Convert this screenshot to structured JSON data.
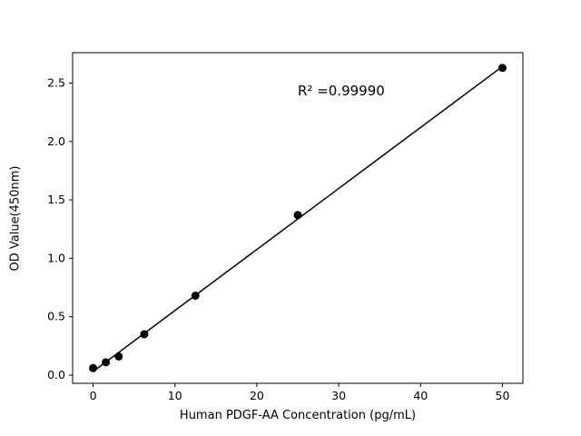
{
  "chart_data": {
    "type": "scatter",
    "title": "",
    "xlabel": "Human PDGF-AA Concentration (pg/mL)",
    "ylabel": "OD Value(450nm)",
    "annotation": "R² =0.99990",
    "points": {
      "x": [
        0,
        1.56,
        3.125,
        6.25,
        12.5,
        25,
        50
      ],
      "y": [
        0.06,
        0.11,
        0.16,
        0.35,
        0.68,
        1.37,
        2.63
      ]
    },
    "fit_line": {
      "x": [
        0,
        50
      ],
      "y": [
        0.031,
        2.642
      ]
    },
    "xlim": [
      -2.5,
      52.5
    ],
    "ylim": [
      -0.07,
      2.76
    ],
    "xticks": [
      0,
      10,
      20,
      30,
      40,
      50
    ],
    "yticks": [
      0.0,
      0.5,
      1.0,
      1.5,
      2.0,
      2.5
    ],
    "grid": false,
    "legend_position": "none",
    "marker_color": "#000000",
    "line_color": "#000000",
    "axis_color": "#000000",
    "background_color": "#ffffff"
  }
}
